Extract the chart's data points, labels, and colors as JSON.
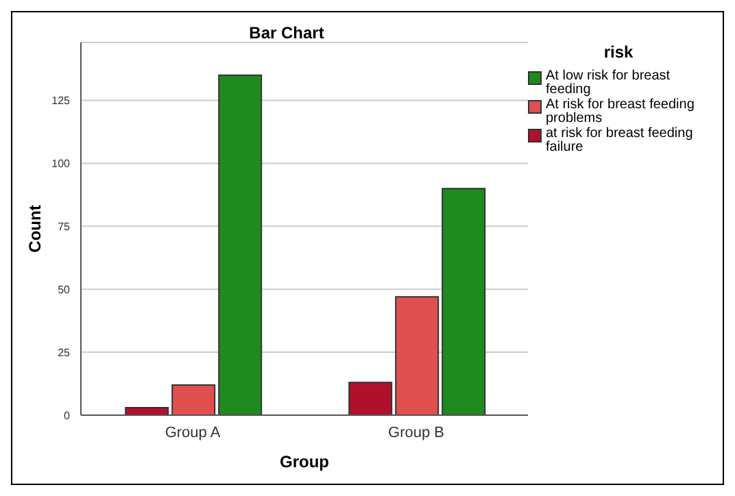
{
  "chart_data": {
    "type": "bar",
    "title": "Bar Chart",
    "xlabel": "Group",
    "ylabel": "Count",
    "legend_title": "risk",
    "categories": [
      "Group A",
      "Group B"
    ],
    "series": [
      {
        "name": "at risk for breast feeding failure",
        "color": "#b0102c",
        "values": [
          3,
          13
        ]
      },
      {
        "name": "At risk for breast feeding problems",
        "color": "#e05050",
        "values": [
          12,
          47
        ]
      },
      {
        "name": "At low risk for breast feeding",
        "color": "#1f8a1f",
        "values": [
          135,
          90
        ]
      }
    ],
    "ylim": [
      0,
      148
    ],
    "yticks": [
      0,
      25,
      50,
      75,
      100,
      125
    ],
    "grid": "y",
    "legend": "right"
  }
}
